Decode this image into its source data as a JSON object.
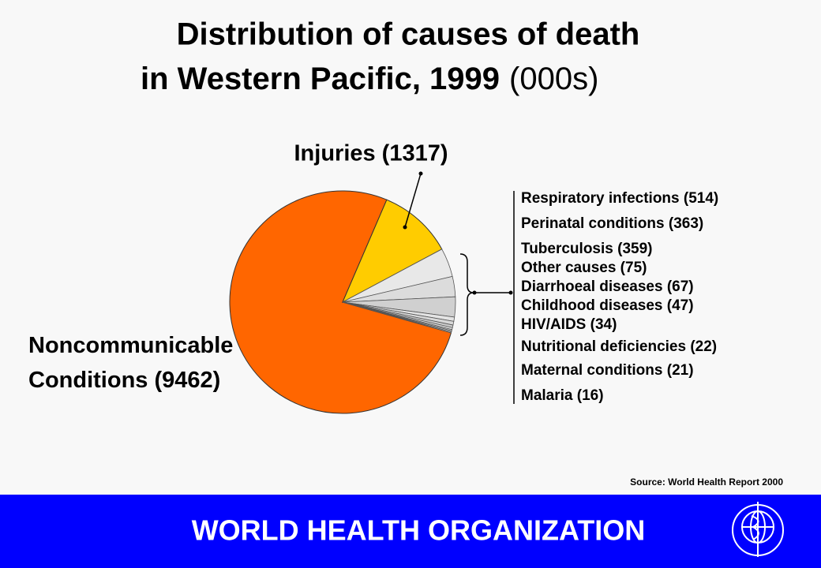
{
  "chart_data": {
    "type": "pie",
    "title": [
      "Distribution of causes of death",
      "in Western Pacific, 1999"
    ],
    "unit": "(000s)",
    "values": [
      9462,
      1317,
      514,
      363,
      359,
      75,
      67,
      47,
      34,
      22,
      21,
      16
    ],
    "value_labels": [
      "Noncommunicable Conditions (9462)",
      "Injuries (1317)",
      "Respiratory infections (514)",
      "Perinatal conditions (363)",
      "Tuberculosis (359)",
      "Other causes (75)",
      "Diarrhoeal diseases (67)",
      "Childhood diseases (47)",
      "HIV/AIDS (34)",
      "Nutritional deficiencies (22)",
      "Maternal conditions (21)",
      "Malaria (16)"
    ],
    "colors": [
      "#ff6600",
      "#ffcc00",
      "#e8e8e8",
      "#dcdcdc",
      "#d0d0d0",
      "#e4e4e4",
      "#d8d8d8",
      "#cccccc",
      "#e0e0e0",
      "#d4d4d4",
      "#c8c8c8",
      "#dddddd"
    ],
    "source": "Source:  World Health Report 2000"
  },
  "footer": "WORLD HEALTH ORGANIZATION"
}
